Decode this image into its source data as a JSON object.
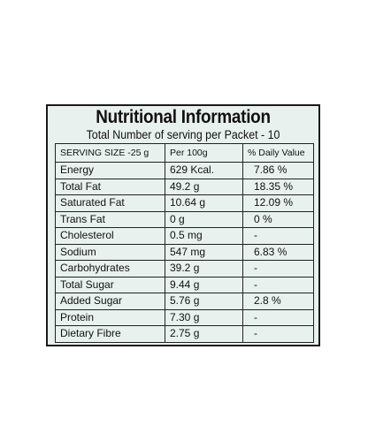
{
  "label": {
    "title": "Nutritional Information",
    "subtitle": "Total Number of serving per Packet - 10",
    "columns": [
      "SERVING SIZE -25 g",
      "Per 100g",
      "% Daily Value"
    ],
    "rows": [
      {
        "name": "Energy",
        "per100g": "629 Kcal.",
        "daily": "7.86 %"
      },
      {
        "name": "Total Fat",
        "per100g": "49.2 g",
        "daily": "18.35 %"
      },
      {
        "name": "Saturated Fat",
        "per100g": "10.64 g",
        "daily": "12.09 %"
      },
      {
        "name": "Trans Fat",
        "per100g": "0 g",
        "daily": "0 %"
      },
      {
        "name": "Cholesterol",
        "per100g": "0.5 mg",
        "daily": "-"
      },
      {
        "name": "Sodium",
        "per100g": "547 mg",
        "daily": "6.83 %"
      },
      {
        "name": "Carbohydrates",
        "per100g": "39.2 g",
        "daily": "-"
      },
      {
        "name": "Total Sugar",
        "per100g": "9.44 g",
        "daily": "-"
      },
      {
        "name": "Added Sugar",
        "per100g": "5.76 g",
        "daily": "2.8 %"
      },
      {
        "name": "Protein",
        "per100g": "7.30 g",
        "daily": "-"
      },
      {
        "name": "Dietary Fibre",
        "per100g": "2.75 g",
        "daily": "-"
      }
    ],
    "colors": {
      "panel_background": "#e8f1ee",
      "border": "#1a1a1a",
      "text": "#111111"
    }
  }
}
